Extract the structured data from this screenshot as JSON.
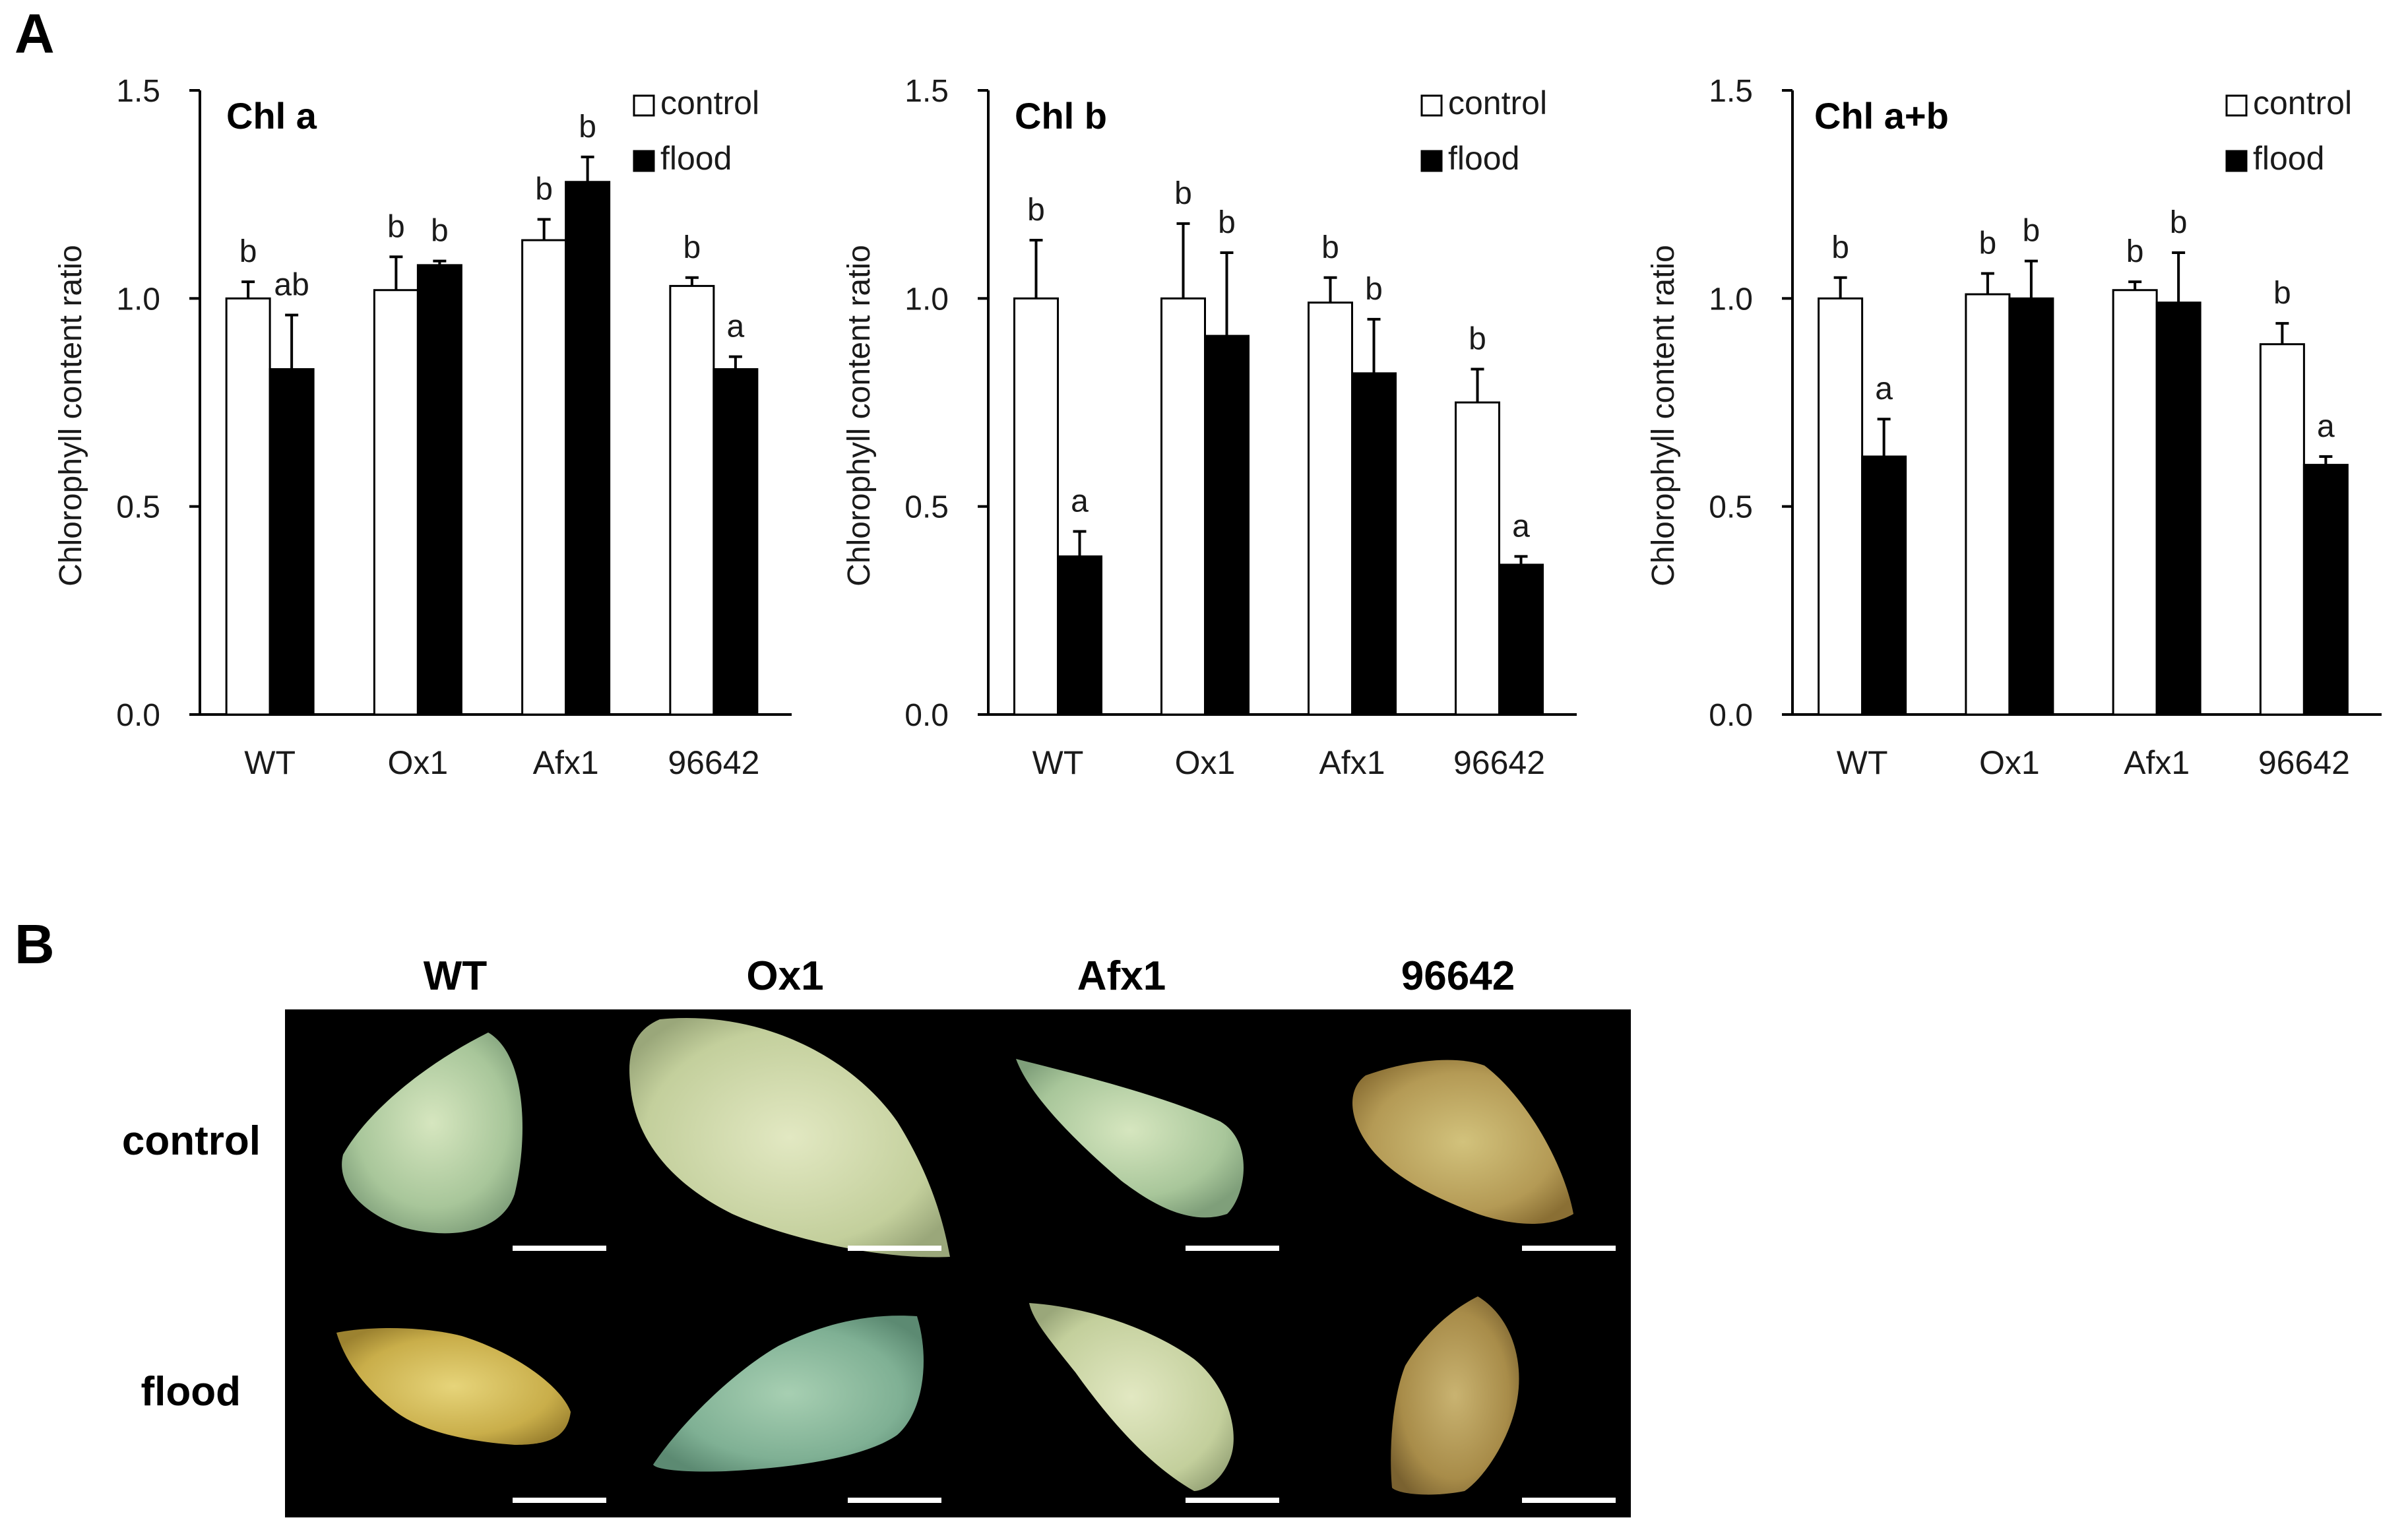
{
  "panel_labels": {
    "a": "A",
    "b": "B"
  },
  "colors": {
    "control": "#ffffff",
    "flood": "#000000",
    "axis": "#000000",
    "scale_bar": "#ffffff"
  },
  "chart_data": [
    {
      "type": "bar",
      "title": "Chl a",
      "ylabel": "Chlorophyll content ratio",
      "xlabel": "",
      "ylim": [
        0,
        1.5
      ],
      "yticks": [
        "0.0",
        "0.5",
        "1.0",
        "1.5"
      ],
      "categories": [
        "WT",
        "Ox1",
        "Afx1",
        "96642"
      ],
      "legend": [
        "control",
        "flood"
      ],
      "series": [
        {
          "name": "control",
          "values": [
            1.0,
            1.02,
            1.14,
            1.03
          ],
          "errors": [
            0.04,
            0.08,
            0.05,
            0.02
          ],
          "labels": [
            "b",
            "b",
            "b",
            "b"
          ]
        },
        {
          "name": "flood",
          "values": [
            0.83,
            1.08,
            1.28,
            0.83
          ],
          "errors": [
            0.13,
            0.01,
            0.06,
            0.03
          ],
          "labels": [
            "ab",
            "b",
            "b",
            "a"
          ]
        }
      ]
    },
    {
      "type": "bar",
      "title": "Chl b",
      "ylabel": "Chlorophyll content ratio",
      "xlabel": "",
      "ylim": [
        0,
        1.5
      ],
      "yticks": [
        "0.0",
        "0.5",
        "1.0",
        "1.5"
      ],
      "categories": [
        "WT",
        "Ox1",
        "Afx1",
        "96642"
      ],
      "legend": [
        "control",
        "flood"
      ],
      "series": [
        {
          "name": "control",
          "values": [
            1.0,
            1.0,
            0.99,
            0.75
          ],
          "errors": [
            0.14,
            0.18,
            0.06,
            0.08
          ],
          "labels": [
            "b",
            "b",
            "b",
            "b"
          ]
        },
        {
          "name": "flood",
          "values": [
            0.38,
            0.91,
            0.82,
            0.36
          ],
          "errors": [
            0.06,
            0.2,
            0.13,
            0.02
          ],
          "labels": [
            "a",
            "b",
            "b",
            "a"
          ]
        }
      ]
    },
    {
      "type": "bar",
      "title": "Chl a+b",
      "ylabel": "Chlorophyll content ratio",
      "xlabel": "",
      "ylim": [
        0,
        1.5
      ],
      "yticks": [
        "0.0",
        "0.5",
        "1.0",
        "1.5"
      ],
      "categories": [
        "WT",
        "Ox1",
        "Afx1",
        "96642"
      ],
      "legend": [
        "control",
        "flood"
      ],
      "series": [
        {
          "name": "control",
          "values": [
            1.0,
            1.01,
            1.02,
            0.89
          ],
          "errors": [
            0.05,
            0.05,
            0.02,
            0.05
          ],
          "labels": [
            "b",
            "b",
            "b",
            "b"
          ]
        },
        {
          "name": "flood",
          "values": [
            0.62,
            1.0,
            0.99,
            0.6
          ],
          "errors": [
            0.09,
            0.09,
            0.12,
            0.02
          ],
          "labels": [
            "a",
            "b",
            "b",
            "a"
          ]
        }
      ]
    }
  ],
  "photos": {
    "columns": [
      "WT",
      "Ox1",
      "Afx1",
      "96642"
    ],
    "rows": [
      "control",
      "flood"
    ]
  }
}
